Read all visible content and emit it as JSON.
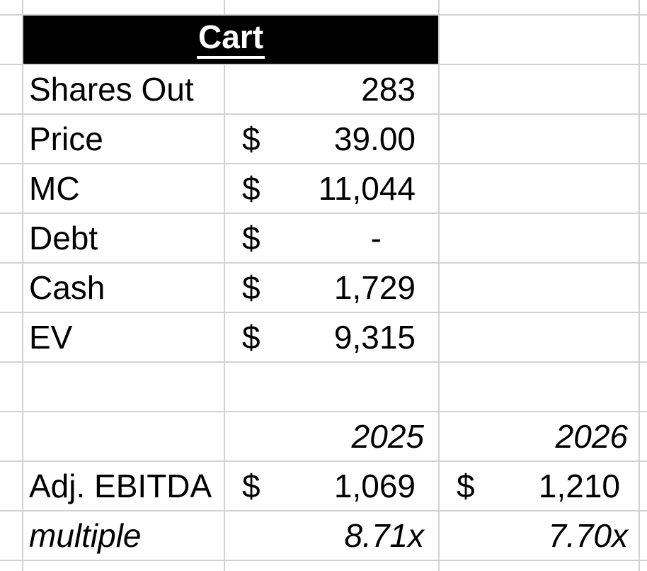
{
  "sheet": {
    "title": "Cart",
    "metrics": [
      {
        "label": "Shares Out",
        "currency": "",
        "value": "283"
      },
      {
        "label": "Price",
        "currency": "$",
        "value": "39.00"
      },
      {
        "label": "MC",
        "currency": "$",
        "value": "11,044"
      },
      {
        "label": "Debt",
        "currency": "$",
        "value": "-"
      },
      {
        "label": "Cash",
        "currency": "$",
        "value": "1,729"
      },
      {
        "label": "EV",
        "currency": "$",
        "value": "9,315"
      }
    ],
    "year_headers": {
      "col2025": "2025",
      "col2026": "2026"
    },
    "ebitda_row": {
      "label": "Adj. EBITDA",
      "currency_2025": "$",
      "value_2025": "1,069",
      "currency_2026": "$",
      "value_2026": "1,210"
    },
    "multiple_row": {
      "label": "multiple",
      "value_2025": "8.71x",
      "value_2026": "7.70x"
    }
  },
  "colors": {
    "header_bg": "#000000",
    "header_text": "#ffffff",
    "gridline": "#d2d2d2",
    "text": "#000000",
    "background": "#ffffff"
  }
}
